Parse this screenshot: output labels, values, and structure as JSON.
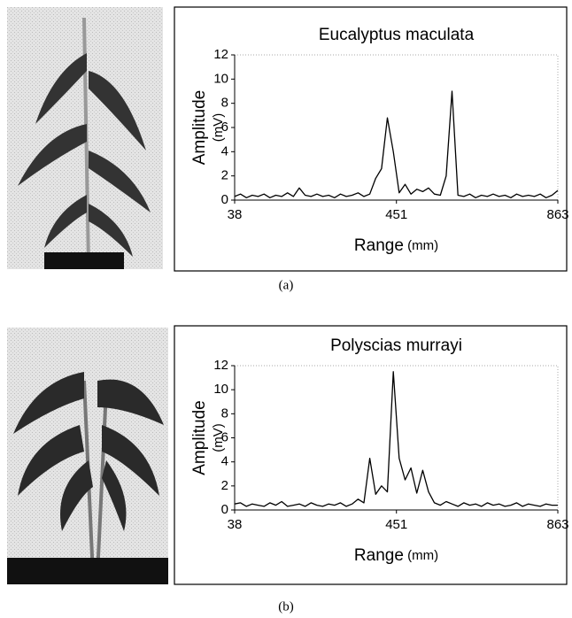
{
  "chart_data": [
    {
      "type": "line",
      "title": "Eucalyptus maculata",
      "xlabel": "Range",
      "xlabel_unit": "(mm)",
      "ylabel": "Amplitude",
      "ylabel_unit": "(mV)",
      "color": "#000000",
      "grid": false,
      "xlim": [
        38,
        863
      ],
      "xticks": [
        38,
        451,
        863
      ],
      "ylim": [
        0,
        12
      ],
      "yticks": [
        0,
        2,
        4,
        6,
        8,
        10,
        12
      ],
      "x": [
        38,
        53,
        68,
        83,
        98,
        113,
        128,
        143,
        158,
        173,
        188,
        203,
        218,
        233,
        248,
        263,
        278,
        293,
        308,
        323,
        338,
        353,
        368,
        383,
        398,
        413,
        428,
        443,
        458,
        473,
        488,
        503,
        518,
        533,
        548,
        563,
        578,
        593,
        608,
        623,
        638,
        653,
        668,
        683,
        698,
        713,
        728,
        743,
        758,
        773,
        788,
        803,
        818,
        833,
        848,
        863
      ],
      "values": [
        0.3,
        0.5,
        0.2,
        0.4,
        0.3,
        0.5,
        0.2,
        0.4,
        0.3,
        0.6,
        0.3,
        1.0,
        0.4,
        0.3,
        0.5,
        0.3,
        0.4,
        0.2,
        0.5,
        0.3,
        0.4,
        0.6,
        0.3,
        0.5,
        1.8,
        2.6,
        6.8,
        4.0,
        0.6,
        1.3,
        0.5,
        0.9,
        0.7,
        1.0,
        0.5,
        0.4,
        2.0,
        9.0,
        0.4,
        0.3,
        0.5,
        0.2,
        0.4,
        0.3,
        0.5,
        0.3,
        0.4,
        0.2,
        0.5,
        0.3,
        0.4,
        0.3,
        0.5,
        0.2,
        0.4,
        0.8
      ]
    },
    {
      "type": "line",
      "title": "Polyscias murrayi",
      "xlabel": "Range",
      "xlabel_unit": "(mm)",
      "ylabel": "Amplitude",
      "ylabel_unit": "(mV)",
      "color": "#000000",
      "grid": false,
      "xlim": [
        38,
        863
      ],
      "xticks": [
        38,
        451,
        863
      ],
      "ylim": [
        0,
        12
      ],
      "yticks": [
        0,
        2,
        4,
        6,
        8,
        10,
        12
      ],
      "x": [
        38,
        53,
        68,
        83,
        98,
        113,
        128,
        143,
        158,
        173,
        188,
        203,
        218,
        233,
        248,
        263,
        278,
        293,
        308,
        323,
        338,
        353,
        368,
        383,
        398,
        413,
        428,
        443,
        458,
        473,
        488,
        503,
        518,
        533,
        548,
        563,
        578,
        593,
        608,
        623,
        638,
        653,
        668,
        683,
        698,
        713,
        728,
        743,
        758,
        773,
        788,
        803,
        818,
        833,
        848,
        863
      ],
      "values": [
        0.5,
        0.6,
        0.3,
        0.5,
        0.4,
        0.3,
        0.6,
        0.4,
        0.7,
        0.3,
        0.4,
        0.5,
        0.3,
        0.6,
        0.4,
        0.3,
        0.5,
        0.4,
        0.6,
        0.3,
        0.5,
        0.9,
        0.6,
        4.3,
        1.3,
        2.0,
        1.5,
        11.5,
        4.3,
        2.5,
        3.5,
        1.4,
        3.3,
        1.5,
        0.6,
        0.4,
        0.7,
        0.5,
        0.3,
        0.6,
        0.4,
        0.5,
        0.3,
        0.6,
        0.4,
        0.5,
        0.3,
        0.4,
        0.6,
        0.3,
        0.5,
        0.4,
        0.3,
        0.5,
        0.4,
        0.4
      ]
    }
  ],
  "captions": [
    "(a)",
    "(b)"
  ]
}
